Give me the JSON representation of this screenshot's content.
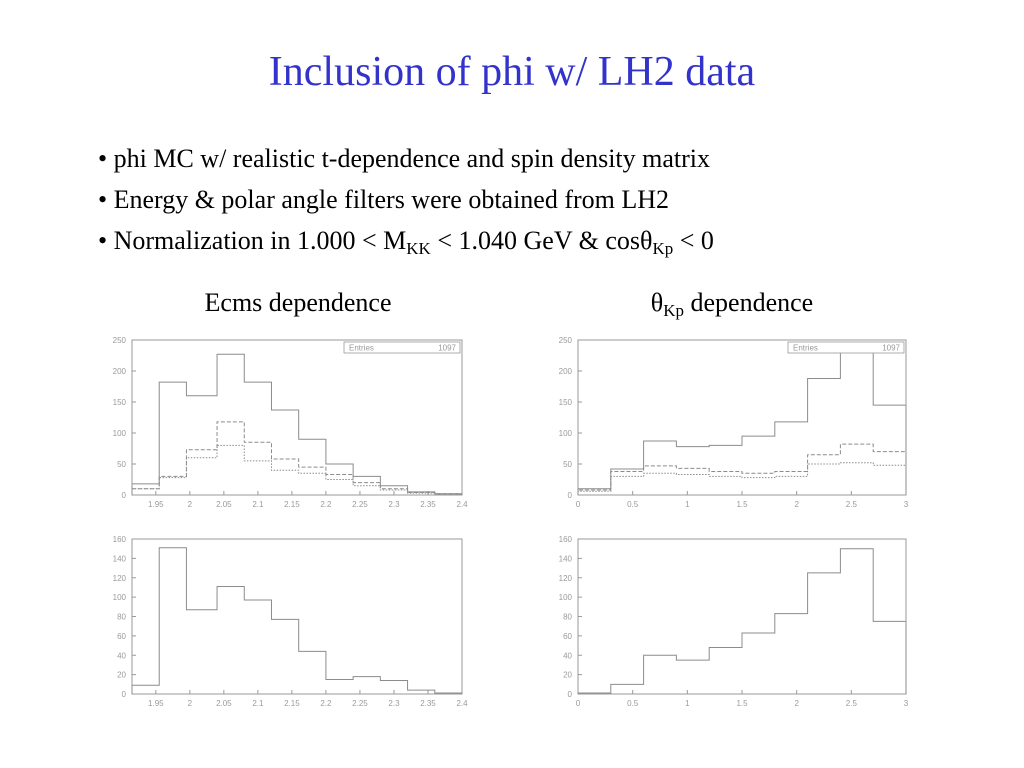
{
  "slide": {
    "title": "Inclusion of phi w/ LH2 data",
    "bullets": [
      {
        "text": "• phi MC w/ realistic t-dependence and spin density matrix"
      },
      {
        "text": "• Energy & polar angle filters were obtained from LH2"
      },
      {
        "parts": [
          "• Normalization in 1.000 < M",
          "KK",
          " < 1.040 GeV & cosθ",
          "Kp",
          " < 0"
        ]
      }
    ],
    "heading_left": "Ecms dependence",
    "heading_right_sym": "θ",
    "heading_right_sub": "Kp",
    "heading_right_rest": " dependence"
  },
  "colors": {
    "title": "#3333cc",
    "frame": "#9a9a9a",
    "hist": "#8c8c8c"
  },
  "chart_data": [
    {
      "type": "histogram",
      "id": "ecms-top",
      "stats_label": "Entries",
      "stats_value": "1097",
      "xlim": [
        1.915,
        2.4
      ],
      "ylim": [
        0,
        250
      ],
      "xticks": [
        1.95,
        2,
        2.05,
        2.1,
        2.15,
        2.2,
        2.25,
        2.3,
        2.35,
        2.4
      ],
      "xtick_labels": [
        "1.95",
        "2",
        "2.05",
        "2.1",
        "2.15",
        "2.2",
        "2.25",
        "2.3",
        "2.35",
        "2.4"
      ],
      "yticks": [
        0,
        50,
        100,
        150,
        200,
        250
      ],
      "ytick_labels": [
        "0",
        "50",
        "100",
        "150",
        "200",
        "250"
      ],
      "bin_edges": [
        1.915,
        1.955,
        1.995,
        2.04,
        2.08,
        2.12,
        2.16,
        2.2,
        2.24,
        2.28,
        2.32,
        2.36,
        2.4
      ],
      "series": [
        {
          "style": "solid",
          "values": [
            18,
            182,
            160,
            227,
            182,
            137,
            90,
            50,
            30,
            15,
            5,
            2
          ]
        },
        {
          "style": "dashed",
          "values": [
            10,
            30,
            73,
            118,
            85,
            58,
            45,
            33,
            20,
            10,
            4,
            2
          ]
        },
        {
          "style": "dotted",
          "values": [
            10,
            28,
            60,
            80,
            55,
            40,
            35,
            25,
            15,
            8,
            3,
            1
          ]
        }
      ]
    },
    {
      "type": "histogram",
      "id": "theta-top",
      "stats_label": "Entries",
      "stats_value": "1097",
      "xlim": [
        0,
        3
      ],
      "ylim": [
        0,
        250
      ],
      "xticks": [
        0,
        0.5,
        1,
        1.5,
        2,
        2.5,
        3
      ],
      "xtick_labels": [
        "0",
        "0.5",
        "1",
        "1.5",
        "2",
        "2.5",
        "3"
      ],
      "yticks": [
        0,
        50,
        100,
        150,
        200,
        250
      ],
      "ytick_labels": [
        "0",
        "50",
        "100",
        "150",
        "200",
        "250"
      ],
      "bin_edges": [
        0,
        0.3,
        0.6,
        0.9,
        1.2,
        1.5,
        1.8,
        2.1,
        2.4,
        2.7,
        3
      ],
      "series": [
        {
          "style": "solid",
          "values": [
            10,
            42,
            87,
            78,
            80,
            95,
            118,
            188,
            230,
            145
          ]
        },
        {
          "style": "dashed",
          "values": [
            8,
            38,
            47,
            43,
            38,
            35,
            38,
            65,
            82,
            70
          ]
        },
        {
          "style": "dotted",
          "values": [
            6,
            30,
            35,
            33,
            30,
            28,
            30,
            50,
            52,
            48
          ]
        }
      ]
    },
    {
      "type": "histogram",
      "id": "ecms-bottom",
      "xlim": [
        1.915,
        2.4
      ],
      "ylim": [
        0,
        160
      ],
      "xticks": [
        1.95,
        2,
        2.05,
        2.1,
        2.15,
        2.2,
        2.25,
        2.3,
        2.35,
        2.4
      ],
      "xtick_labels": [
        "1.95",
        "2",
        "2.05",
        "2.1",
        "2.15",
        "2.2",
        "2.25",
        "2.3",
        "2.35",
        "2.4"
      ],
      "yticks": [
        0,
        20,
        40,
        60,
        80,
        100,
        120,
        140,
        160
      ],
      "ytick_labels": [
        "0",
        "20",
        "40",
        "60",
        "80",
        "100",
        "120",
        "140",
        "160"
      ],
      "bin_edges": [
        1.915,
        1.955,
        1.995,
        2.04,
        2.08,
        2.12,
        2.16,
        2.2,
        2.24,
        2.28,
        2.32,
        2.36,
        2.4
      ],
      "series": [
        {
          "style": "solid",
          "values": [
            9,
            151,
            87,
            111,
            97,
            77,
            44,
            15,
            18,
            14,
            4,
            1
          ]
        }
      ]
    },
    {
      "type": "histogram",
      "id": "theta-bottom",
      "xlim": [
        0,
        3
      ],
      "ylim": [
        0,
        160
      ],
      "xticks": [
        0,
        0.5,
        1,
        1.5,
        2,
        2.5,
        3
      ],
      "xtick_labels": [
        "0",
        "0.5",
        "1",
        "1.5",
        "2",
        "2.5",
        "3"
      ],
      "yticks": [
        0,
        20,
        40,
        60,
        80,
        100,
        120,
        140,
        160
      ],
      "ytick_labels": [
        "0",
        "20",
        "40",
        "60",
        "80",
        "100",
        "120",
        "140",
        "160"
      ],
      "bin_edges": [
        0,
        0.3,
        0.6,
        0.9,
        1.2,
        1.5,
        1.8,
        2.1,
        2.4,
        2.7,
        3
      ],
      "series": [
        {
          "style": "solid",
          "values": [
            1,
            10,
            40,
            35,
            48,
            63,
            83,
            125,
            150,
            75
          ]
        }
      ]
    }
  ]
}
